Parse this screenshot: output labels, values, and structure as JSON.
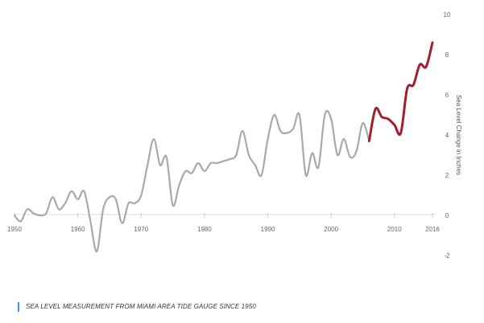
{
  "chart_data": {
    "type": "line",
    "title": "",
    "xlabel": "",
    "ylabel": "Sea Level Change in Inches",
    "xlim": [
      1950,
      2016
    ],
    "ylim": [
      -2,
      10
    ],
    "x_ticks": [
      "1950",
      "1960",
      "1970",
      "1980",
      "1990",
      "2000",
      "2010",
      "2016"
    ],
    "y_ticks": [
      "-2",
      "0",
      "2",
      "4",
      "6",
      "8",
      "10"
    ],
    "grid": false,
    "legend": "none",
    "series": [
      {
        "color": "#a9a9a9",
        "x": [
          1950,
          1951,
          1952,
          1953,
          1954,
          1955,
          1956,
          1957,
          1958,
          1959,
          1960,
          1961,
          1962,
          1963,
          1964,
          1965,
          1966,
          1967,
          1968,
          1969,
          1970,
          1971,
          1972,
          1973,
          1974,
          1975,
          1976,
          1977,
          1978,
          1979,
          1980,
          1981,
          1982,
          1983,
          1984,
          1985,
          1986,
          1987,
          1988,
          1989,
          1990,
          1991,
          1992,
          1993,
          1994,
          1995,
          1996,
          1997,
          1998,
          1999,
          2000,
          2001,
          2002,
          2003,
          2004,
          2005,
          2006
        ],
        "y": [
          0,
          -0.3,
          0.3,
          0.1,
          0.0,
          0.1,
          0.9,
          0.3,
          0.6,
          1.2,
          0.8,
          1.2,
          -0.3,
          -1.8,
          0.3,
          0.9,
          0.8,
          -0.4,
          0.6,
          0.6,
          1.0,
          2.5,
          3.8,
          2.5,
          2.9,
          0.5,
          1.5,
          2.2,
          2.1,
          2.6,
          2.2,
          2.6,
          2.6,
          2.7,
          2.8,
          3.0,
          4.2,
          3.0,
          2.5,
          2.0,
          3.8,
          5.0,
          4.2,
          4.1,
          4.3,
          5.0,
          2.0,
          3.1,
          2.4,
          5.0,
          4.8,
          3.0,
          3.8,
          2.9,
          3.2,
          4.6,
          3.7
        ]
      },
      {
        "color": "#a51c30",
        "x": [
          2006,
          2007,
          2008,
          2009,
          2010,
          2011,
          2012,
          2013,
          2014,
          2015,
          2016
        ],
        "y": [
          3.7,
          5.3,
          4.9,
          4.8,
          4.5,
          4.1,
          6.3,
          6.5,
          7.5,
          7.4,
          8.6
        ]
      }
    ]
  },
  "caption": "SEA LEVEL MEASUREMENT FROM MIAMI AREA TIDE GAUGE SINCE 1950"
}
